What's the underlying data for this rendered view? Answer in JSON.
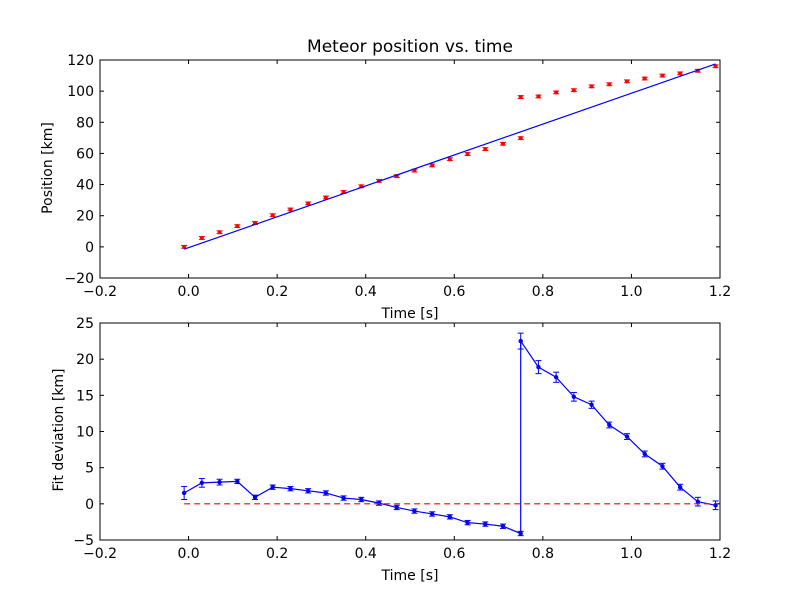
{
  "chart_data": [
    {
      "type": "scatter",
      "title": "Meteor position vs. time",
      "xlabel": "Time [s]",
      "ylabel": "Position [km]",
      "xlim": [
        -0.2,
        1.2
      ],
      "ylim": [
        -20,
        120
      ],
      "xticks": [
        "−0.2",
        "0.0",
        "0.2",
        "0.4",
        "0.6",
        "0.8",
        "1.0",
        "1.2"
      ],
      "yticks": [
        "−20",
        "0",
        "20",
        "40",
        "60",
        "80",
        "100",
        "120"
      ],
      "grid": false,
      "colors": {
        "points": "#ff0000",
        "fit": "#0000ff"
      },
      "series": [
        {
          "marker": "red-error-points",
          "x": [
            -0.01,
            0.03,
            0.07,
            0.11,
            0.15,
            0.19,
            0.23,
            0.27,
            0.31,
            0.35,
            0.39,
            0.43,
            0.47,
            0.51,
            0.55,
            0.59,
            0.63,
            0.67,
            0.71,
            0.75,
            0.75,
            0.79,
            0.83,
            0.87,
            0.91,
            0.95,
            0.99,
            1.03,
            1.07,
            1.11,
            1.15,
            1.19
          ],
          "y": [
            0.0,
            5.7,
            9.4,
            13.3,
            15.3,
            20.3,
            24.0,
            27.9,
            31.7,
            35.2,
            38.9,
            42.4,
            45.4,
            49.0,
            52.3,
            56.3,
            59.6,
            62.8,
            66.2,
            69.8,
            96.2,
            96.6,
            99.2,
            100.6,
            103.1,
            104.4,
            106.3,
            108.1,
            110.0,
            111.4,
            113.1,
            116.0
          ],
          "yerr": 0.9
        },
        {
          "marker": "blue-fit-line",
          "x": [
            -0.01,
            1.19
          ],
          "y": [
            -1.5,
            117.5
          ]
        }
      ]
    },
    {
      "type": "line",
      "xlabel": "Time [s]",
      "ylabel": "Fit deviation [km]",
      "xlim": [
        -0.2,
        1.2
      ],
      "ylim": [
        -5,
        25
      ],
      "xticks": [
        "−0.2",
        "0.0",
        "0.2",
        "0.4",
        "0.6",
        "0.8",
        "1.0",
        "1.2"
      ],
      "yticks": [
        "−5",
        "0",
        "5",
        "10",
        "15",
        "20",
        "25"
      ],
      "grid": false,
      "colors": {
        "line": "#0000ff",
        "zero": "#ff0000"
      },
      "series": [
        {
          "marker": "blue-line-error-points",
          "x": [
            -0.01,
            0.03,
            0.07,
            0.11,
            0.15,
            0.19,
            0.23,
            0.27,
            0.31,
            0.35,
            0.39,
            0.43,
            0.47,
            0.51,
            0.55,
            0.59,
            0.63,
            0.67,
            0.71,
            0.75,
            0.75,
            0.79,
            0.83,
            0.87,
            0.91,
            0.95,
            0.99,
            1.03,
            1.07,
            1.11,
            1.15,
            1.19
          ],
          "y": [
            1.5,
            2.9,
            3.0,
            3.1,
            0.9,
            2.3,
            2.1,
            1.8,
            1.5,
            0.8,
            0.6,
            0.1,
            -0.5,
            -1.0,
            -1.4,
            -1.8,
            -2.6,
            -2.8,
            -3.1,
            -4.1,
            22.5,
            18.9,
            17.5,
            14.8,
            13.7,
            10.9,
            9.3,
            6.9,
            5.2,
            2.3,
            0.3,
            -0.2
          ],
          "yerr": [
            0.9,
            0.6,
            0.4,
            0.3,
            0.3,
            0.3,
            0.3,
            0.3,
            0.3,
            0.3,
            0.3,
            0.3,
            0.3,
            0.3,
            0.3,
            0.3,
            0.3,
            0.3,
            0.3,
            0.3,
            1.1,
            0.9,
            0.7,
            0.6,
            0.5,
            0.4,
            0.4,
            0.4,
            0.4,
            0.4,
            0.6,
            0.6
          ]
        },
        {
          "marker": "red-dashed-zero",
          "x": [
            -0.01,
            1.19
          ],
          "y": [
            0,
            0
          ]
        }
      ]
    }
  ]
}
